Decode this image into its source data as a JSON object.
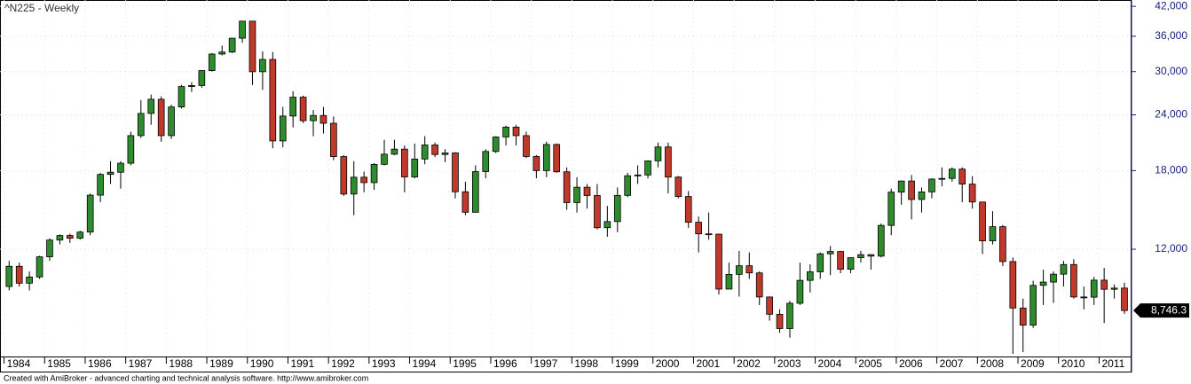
{
  "chart_data": {
    "type": "candlestick",
    "title": "^N225 - Weekly",
    "log_scale": true,
    "grid": true,
    "up_color": "#2e8b2e",
    "down_color": "#c0392b",
    "outline_color": "#000000",
    "xlim": [
      1983.9,
      2011.8
    ],
    "ylim": [
      6900,
      43400
    ],
    "xticks": [
      1984,
      1985,
      1986,
      1987,
      1988,
      1989,
      1990,
      1991,
      1992,
      1993,
      1994,
      1995,
      1996,
      1997,
      1998,
      1999,
      2000,
      2001,
      2002,
      2003,
      2004,
      2005,
      2006,
      2007,
      2008,
      2009,
      2010,
      2011
    ],
    "yticks": [
      {
        "value": 12000,
        "label": "12,000"
      },
      {
        "value": 18000,
        "label": "18,000"
      },
      {
        "value": 24000,
        "label": "24,000"
      },
      {
        "value": 30000,
        "label": "30,000"
      },
      {
        "value": 36000,
        "label": "36,000"
      },
      {
        "value": 42000,
        "label": "42,000"
      }
    ],
    "x": [
      1984.125,
      1984.375,
      1984.625,
      1984.875,
      1985.125,
      1985.375,
      1985.625,
      1985.875,
      1986.125,
      1986.375,
      1986.625,
      1986.875,
      1987.125,
      1987.375,
      1987.625,
      1987.875,
      1988.125,
      1988.375,
      1988.625,
      1988.875,
      1989.125,
      1989.375,
      1989.625,
      1989.875,
      1990.125,
      1990.375,
      1990.625,
      1990.875,
      1991.125,
      1991.375,
      1991.625,
      1991.875,
      1992.125,
      1992.375,
      1992.625,
      1992.875,
      1993.125,
      1993.375,
      1993.625,
      1993.875,
      1994.125,
      1994.375,
      1994.625,
      1994.875,
      1995.125,
      1995.375,
      1995.625,
      1995.875,
      1996.125,
      1996.375,
      1996.625,
      1996.875,
      1997.125,
      1997.375,
      1997.625,
      1997.875,
      1998.125,
      1998.375,
      1998.625,
      1998.875,
      1999.125,
      1999.375,
      1999.625,
      1999.875,
      2000.125,
      2000.375,
      2000.625,
      2000.875,
      2001.125,
      2001.375,
      2001.625,
      2001.875,
      2002.125,
      2002.375,
      2002.625,
      2002.875,
      2003.125,
      2003.375,
      2003.625,
      2003.875,
      2004.125,
      2004.375,
      2004.625,
      2004.875,
      2005.125,
      2005.375,
      2005.625,
      2005.875,
      2006.125,
      2006.375,
      2006.625,
      2006.875,
      2007.125,
      2007.375,
      2007.625,
      2007.875,
      2008.125,
      2008.375,
      2008.625,
      2008.875,
      2009.125,
      2009.375,
      2009.625,
      2009.875,
      2010.125,
      2010.375,
      2010.625,
      2010.875,
      2011.125,
      2011.375,
      2011.625
    ],
    "open": [
      9900,
      10990,
      10070,
      10400,
      11540,
      12580,
      12880,
      12700,
      13110,
      15860,
      17650,
      17850,
      18700,
      21560,
      24180,
      26010,
      21560,
      25000,
      27770,
      27920,
      30160,
      32840,
      33180,
      35640,
      38916,
      29980,
      31940,
      20980,
      23850,
      26290,
      23290,
      23920,
      22980,
      19350,
      15950,
      17400,
      16920,
      18590,
      19590,
      20110,
      17420,
      19110,
      20550,
      19560,
      19720,
      16140,
      14520,
      17910,
      19870,
      21410,
      22530,
      21560,
      19360,
      18000,
      20600,
      17890,
      15260,
      16520,
      15830,
      13410,
      13840,
      15840,
      17530,
      17600,
      18930,
      20340,
      17410,
      15750,
      13790,
      12990,
      12970,
      9770,
      10540,
      11020,
      10620,
      9380,
      8580,
      7970,
      9080,
      10220,
      10680,
      11720,
      11860,
      10820,
      11490,
      11670,
      11580,
      13570,
      16110,
      17060,
      15510,
      16130,
      17230,
      17290,
      18140,
      16790,
      15310,
      12530,
      13480,
      11260,
      8860,
      8110,
      9960,
      10130,
      10550,
      11090,
      9380,
      9370,
      10230,
      9760,
      9820
    ],
    "high": [
      11300,
      11200,
      10700,
      11600,
      12700,
      12950,
      13000,
      13200,
      16000,
      17800,
      18900,
      18900,
      22000,
      25900,
      26650,
      26400,
      25300,
      28000,
      28400,
      30200,
      33000,
      34300,
      35700,
      38957,
      38700,
      33300,
      33200,
      25000,
      27100,
      26500,
      24600,
      25000,
      23800,
      19500,
      18900,
      17900,
      18700,
      21100,
      21100,
      20500,
      20700,
      21500,
      20800,
      20100,
      19800,
      17000,
      18500,
      20100,
      21500,
      22700,
      22800,
      22000,
      19500,
      20900,
      20700,
      18300,
      17400,
      16800,
      16800,
      15000,
      16500,
      17800,
      18500,
      18950,
      20800,
      20800,
      17500,
      16200,
      14200,
      14500,
      13000,
      11200,
      11900,
      11800,
      10700,
      9300,
      8800,
      9200,
      11200,
      11100,
      11800,
      12200,
      11900,
      11500,
      11900,
      11700,
      13700,
      16400,
      17100,
      17600,
      16500,
      17300,
      18300,
      18300,
      18300,
      17500,
      15300,
      14600,
      13600,
      11500,
      9300,
      10200,
      10800,
      10700,
      11300,
      11400,
      9900,
      10400,
      10900,
      10000,
      10100
    ],
    "low": [
      9700,
      9900,
      9700,
      10300,
      11300,
      12300,
      12400,
      12600,
      12900,
      15300,
      16800,
      16400,
      18500,
      21300,
      22800,
      20900,
      21200,
      24800,
      27000,
      27600,
      30000,
      32600,
      33000,
      34800,
      28000,
      27300,
      20200,
      20300,
      22500,
      23000,
      21500,
      21800,
      19000,
      15800,
      14300,
      16100,
      16300,
      18500,
      19500,
      16100,
      17300,
      18600,
      19300,
      18800,
      15600,
      14300,
      14500,
      17300,
      19700,
      20500,
      20500,
      19200,
      17300,
      17400,
      17800,
      14700,
      14500,
      14800,
      13300,
      12800,
      13100,
      15700,
      16800,
      17300,
      18300,
      16000,
      15600,
      13400,
      11800,
      12600,
      9500,
      9800,
      9400,
      10300,
      9000,
      8300,
      7800,
      7608,
      9000,
      9600,
      10300,
      10500,
      10600,
      10600,
      11200,
      10800,
      11500,
      12900,
      15100,
      14000,
      14500,
      15600,
      16600,
      17000,
      15300,
      14800,
      11700,
      12300,
      11000,
      6995,
      7055,
      8000,
      9000,
      9100,
      9900,
      9300,
      8800,
      9000,
      8200,
      9300,
      8600
    ],
    "close": [
      10990,
      10070,
      10400,
      11540,
      12580,
      12880,
      12700,
      13110,
      15860,
      17650,
      17850,
      18700,
      21560,
      24180,
      26010,
      21560,
      25000,
      27770,
      27920,
      30160,
      32840,
      33180,
      35640,
      38916,
      29980,
      31940,
      20980,
      23850,
      26290,
      23290,
      23920,
      22980,
      19350,
      15950,
      17400,
      16920,
      18590,
      19590,
      20110,
      17420,
      19110,
      20550,
      19560,
      19720,
      16140,
      14520,
      17910,
      19870,
      21410,
      22530,
      21560,
      19360,
      18000,
      20600,
      17890,
      15260,
      16520,
      15830,
      13410,
      13840,
      15840,
      17530,
      17600,
      18930,
      20340,
      17410,
      15750,
      13790,
      12990,
      12970,
      9770,
      10540,
      11020,
      10620,
      9380,
      8580,
      7970,
      9080,
      10220,
      10680,
      11720,
      11860,
      10820,
      11490,
      11670,
      11580,
      13570,
      16110,
      17060,
      15510,
      16130,
      17230,
      17290,
      18140,
      16790,
      15310,
      12530,
      13480,
      11260,
      8860,
      8110,
      9960,
      10130,
      10550,
      11090,
      9380,
      9370,
      10230,
      9760,
      9820,
      8746.3
    ],
    "last_value": {
      "value": 8746.3,
      "label": "8,746.3"
    }
  },
  "footer": "Created with AmiBroker - advanced charting and technical analysis software. http://www.amibroker.com"
}
